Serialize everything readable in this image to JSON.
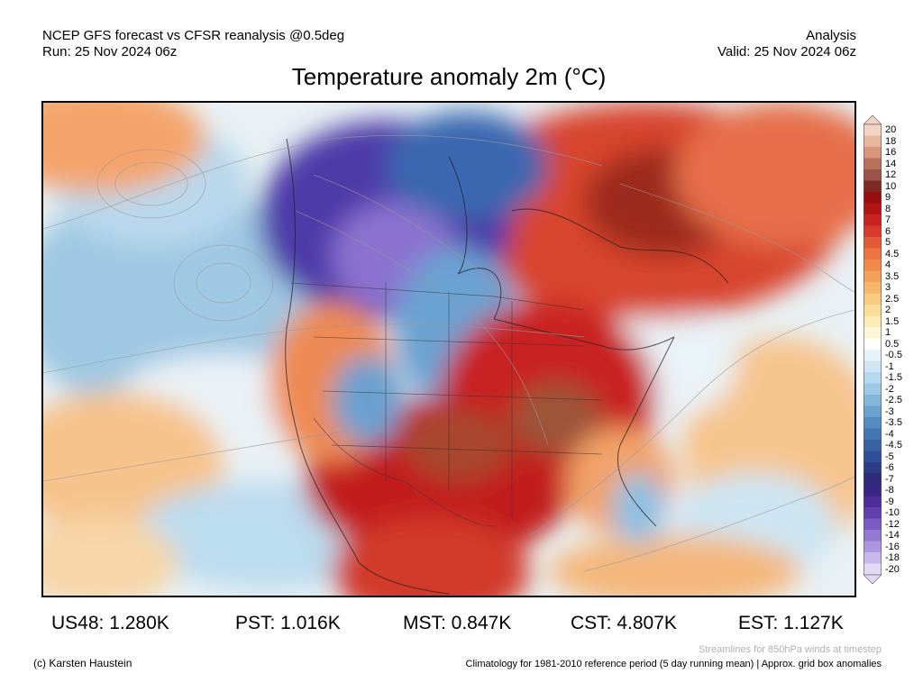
{
  "header": {
    "model_line": "NCEP GFS forecast vs CFSR reanalysis @0.5deg",
    "run_line": "Run: 25 Nov 2024 06z",
    "analysis_label": "Analysis",
    "valid_line": "Valid: 25 Nov 2024 06z",
    "title": "Temperature anomaly 2m (°C)"
  },
  "colorbar": {
    "labels": [
      "20",
      "18",
      "16",
      "14",
      "12",
      "10",
      "9",
      "8",
      "7",
      "6",
      "5",
      "4.5",
      "4",
      "3.5",
      "3",
      "2.5",
      "2",
      "1.5",
      "1",
      "0.5",
      "-0.5",
      "-1",
      "-1.5",
      "-2",
      "-2.5",
      "-3",
      "-3.5",
      "-4",
      "-4.5",
      "-5",
      "-6",
      "-7",
      "-8",
      "-9",
      "-10",
      "-12",
      "-14",
      "-16",
      "-18",
      "-20"
    ],
    "colors": [
      "#f3d4c4",
      "#e8b69e",
      "#d9967a",
      "#b9705a",
      "#9a5445",
      "#7e2a22",
      "#9a0d0d",
      "#b51414",
      "#c92222",
      "#d93a2c",
      "#e55a36",
      "#ee7442",
      "#f28a4c",
      "#f5a05a",
      "#f7b66b",
      "#f9cb80",
      "#fbdc98",
      "#fcebb7",
      "#fdf6d9",
      "#ffffff",
      "#e7f3fb",
      "#cfe7f5",
      "#b6daef",
      "#9ccae6",
      "#82b6da",
      "#6aa1cf",
      "#548bc2",
      "#4374b3",
      "#3861a6",
      "#2f4d98",
      "#2b3c88",
      "#2e2b7a",
      "#3b2584",
      "#4e2c99",
      "#6240b0",
      "#7a5bc3",
      "#9378d2",
      "#ad97e0",
      "#c8b8ec",
      "#e2d9f7"
    ]
  },
  "stats": [
    {
      "label": "US48: 1.280K"
    },
    {
      "label": "PST: 1.016K"
    },
    {
      "label": "MST: 0.847K"
    },
    {
      "label": "CST: 4.807K"
    },
    {
      "label": "EST: 1.127K"
    }
  ],
  "footer": {
    "streamline_note": "Streamlines for 850hPa winds at timestep",
    "copyright": "(c) Karsten Haustein",
    "climatology": "Climatology for 1981-2010 reference period (5 day running mean) | Approx. grid box anomalies"
  },
  "map": {
    "ocean_color": "#cfe3f0",
    "warm_core_color": "#b8161a",
    "cold_core_color": "#3a2a96"
  }
}
